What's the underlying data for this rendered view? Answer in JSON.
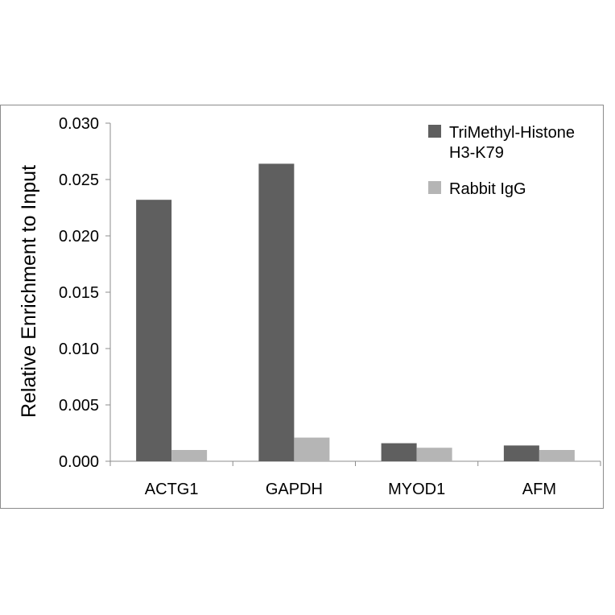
{
  "chart_data": {
    "type": "bar",
    "categories": [
      "ACTG1",
      "GAPDH",
      "MYOD1",
      "AFM"
    ],
    "series": [
      {
        "name": "TriMethyl-Histone H3-K79",
        "name_lines": [
          "TriMethyl-Histone",
          "H3-K79"
        ],
        "color": "#5f5f5f",
        "values": [
          0.0232,
          0.0264,
          0.0016,
          0.0014
        ]
      },
      {
        "name": "Rabbit IgG",
        "name_lines": [
          "Rabbit IgG"
        ],
        "color": "#b5b5b5",
        "values": [
          0.001,
          0.0021,
          0.0012,
          0.001
        ]
      }
    ],
    "ylabel": "Relative Enrichment to Input",
    "xlabel": "",
    "ylim": [
      0,
      0.03
    ],
    "yticks": [
      "0.000",
      "0.005",
      "0.010",
      "0.015",
      "0.020",
      "0.025",
      "0.030"
    ],
    "grid": false,
    "legend": "top-right"
  }
}
